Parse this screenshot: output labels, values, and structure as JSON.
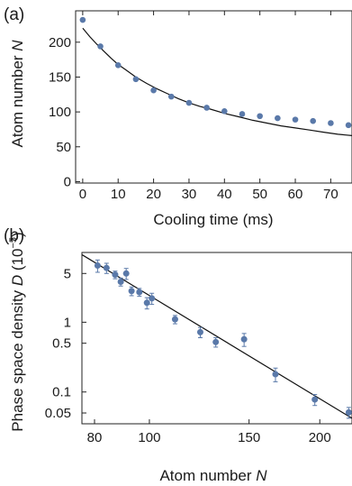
{
  "chart_data": [
    {
      "panel": "(a)",
      "type": "scatter",
      "xlabel": "Cooling time (ms)",
      "ylabel_prefix": "Atom number ",
      "ylabel_var": "N",
      "xlim": [
        -2,
        76
      ],
      "ylim": [
        -2,
        245
      ],
      "xticks": [
        0,
        10,
        20,
        30,
        40,
        50,
        60,
        70
      ],
      "yticks": [
        0,
        50,
        100,
        150,
        200
      ],
      "x": [
        0,
        5,
        10,
        15,
        20,
        25,
        30,
        35,
        40,
        45,
        50,
        55,
        60,
        65,
        70,
        75
      ],
      "y": [
        232,
        194,
        167,
        147,
        131,
        122,
        113,
        106,
        101,
        97,
        94,
        91,
        89,
        87,
        84,
        81
      ],
      "fit_curve": {
        "x": [
          0,
          2,
          4,
          6,
          8,
          10,
          12,
          15,
          18,
          21,
          24,
          27,
          30,
          33,
          36,
          40,
          44,
          48,
          52,
          56,
          60,
          64,
          68,
          72,
          76
        ],
        "y": [
          220,
          208,
          197,
          187,
          177,
          168,
          161,
          150,
          141,
          133,
          126,
          119,
          113,
          108,
          104,
          98,
          93,
          88,
          84,
          80,
          77,
          74,
          71,
          68,
          66
        ]
      }
    },
    {
      "panel": "(b)",
      "type": "scatter",
      "xlabel_prefix": "Atom number ",
      "xlabel_var": "N",
      "ylabel_prefix": "Phase space density ",
      "ylabel_var": "D",
      "ylabel_unit": " (10",
      "ylabel_exp": "−5",
      "ylabel_close": ")",
      "xscale": "log",
      "yscale": "log",
      "xlim": [
        76,
        228
      ],
      "ylim": [
        0.035,
        10
      ],
      "xticks": [
        80,
        100,
        150,
        200
      ],
      "yticks": [
        0.05,
        0.1,
        0.5,
        1,
        5
      ],
      "ytick_labels": [
        "0.05",
        "0.1",
        "0.5",
        "1",
        "5"
      ],
      "x": [
        81,
        84,
        87,
        89,
        91,
        93,
        96,
        99,
        101,
        111,
        123,
        131,
        147,
        167,
        196,
        225
      ],
      "y": [
        6.5,
        6.0,
        4.8,
        3.8,
        5.0,
        2.8,
        2.7,
        1.9,
        2.2,
        1.1,
        0.72,
        0.52,
        0.57,
        0.18,
        0.078,
        0.051
      ],
      "y_err": [
        1.3,
        1.0,
        0.6,
        0.5,
        0.9,
        0.4,
        0.35,
        0.35,
        0.4,
        0.15,
        0.12,
        0.08,
        0.12,
        0.04,
        0.014,
        0.009
      ],
      "fit_line": {
        "x": [
          76,
          228
        ],
        "y": [
          9.3,
          0.042
        ]
      }
    }
  ]
}
